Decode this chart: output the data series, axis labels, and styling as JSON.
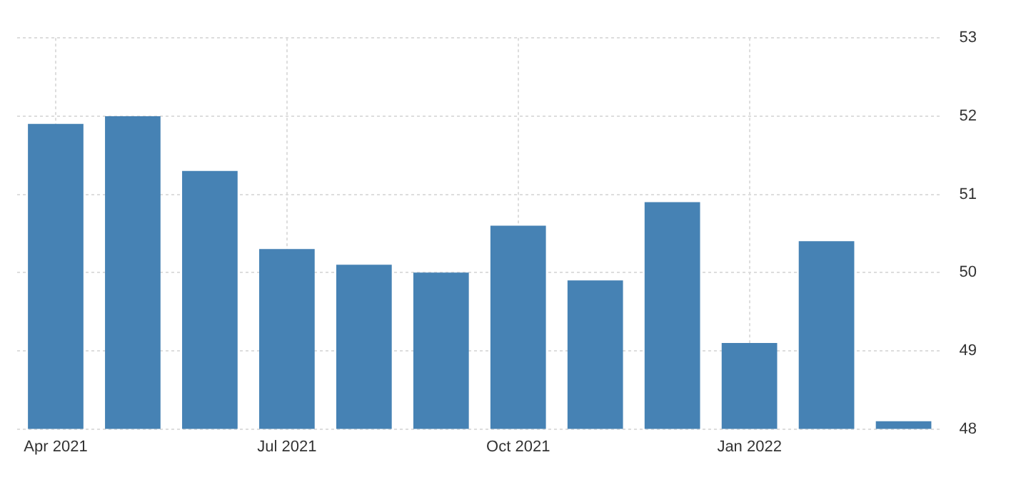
{
  "chart_data": {
    "type": "bar",
    "categories": [
      "Apr 2021",
      null,
      null,
      "Jul 2021",
      null,
      null,
      "Oct 2021",
      null,
      null,
      "Jan 2022",
      null,
      null
    ],
    "values": [
      51.9,
      52.0,
      51.3,
      50.3,
      50.1,
      50.0,
      50.6,
      49.9,
      50.9,
      49.1,
      50.4,
      48.1
    ],
    "color": "#4682b4",
    "ylim": [
      48,
      53
    ],
    "yticks": [
      48,
      49,
      50,
      51,
      52,
      53
    ],
    "grid": true,
    "legend": false
  }
}
